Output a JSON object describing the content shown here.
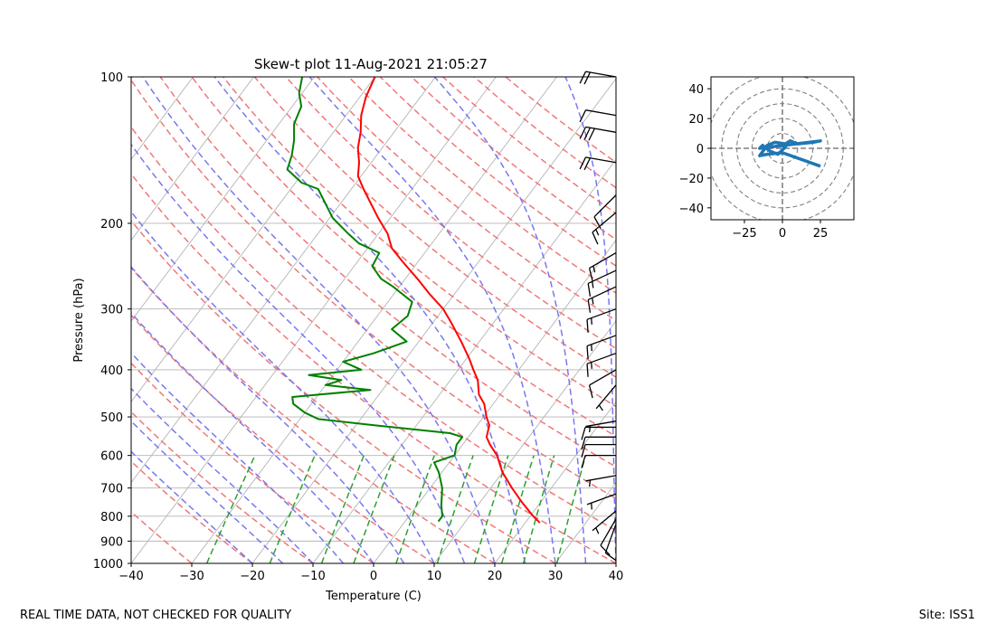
{
  "chart_data": [
    {
      "type": "skew-t",
      "title": "Skew-t plot 11-Aug-2021 21:05:27",
      "xlabel": "Temperature (C)",
      "ylabel": "Pressure (hPa)",
      "xlim": [
        -40,
        40
      ],
      "ylim": [
        1000,
        100
      ],
      "x_ticks": [
        -40,
        -30,
        -20,
        -10,
        0,
        10,
        20,
        30,
        40
      ],
      "x_tick_labels": [
        "−40",
        "−30",
        "−20",
        "−10",
        "0",
        "10",
        "20",
        "30",
        "40"
      ],
      "y_ticks": [
        1000,
        900,
        800,
        700,
        600,
        500,
        400,
        300,
        200,
        100
      ],
      "y_tick_labels": [
        "1000",
        "900",
        "800",
        "700",
        "600",
        "500",
        "400",
        "300",
        "200",
        "100"
      ],
      "grid": true,
      "colors": {
        "temperature": "#ff0000",
        "dewpoint": "#008000",
        "dry_adiabats": "#f07878",
        "moist_adiabats": "#7878f0",
        "mixing_ratio": "#2ca02c",
        "isotherms": "#b4b4b4",
        "barbs": "#000000"
      },
      "temperature": [
        {
          "p": 825,
          "t": 22.4
        },
        {
          "p": 800,
          "t": 20.5
        },
        {
          "p": 750,
          "t": 17.0
        },
        {
          "p": 700,
          "t": 13.5
        },
        {
          "p": 650,
          "t": 10.0
        },
        {
          "p": 600,
          "t": 7.0
        },
        {
          "p": 570,
          "t": 4.5
        },
        {
          "p": 550,
          "t": 3.0
        },
        {
          "p": 520,
          "t": 2.0
        },
        {
          "p": 500,
          "t": 0.5
        },
        {
          "p": 470,
          "t": -1.5
        },
        {
          "p": 450,
          "t": -3.5
        },
        {
          "p": 420,
          "t": -5.5
        },
        {
          "p": 400,
          "t": -7.5
        },
        {
          "p": 380,
          "t": -9.5
        },
        {
          "p": 350,
          "t": -13.0
        },
        {
          "p": 320,
          "t": -17.0
        },
        {
          "p": 300,
          "t": -20.0
        },
        {
          "p": 280,
          "t": -24.0
        },
        {
          "p": 260,
          "t": -28.0
        },
        {
          "p": 240,
          "t": -32.5
        },
        {
          "p": 225,
          "t": -36.0
        },
        {
          "p": 210,
          "t": -38.5
        },
        {
          "p": 195,
          "t": -42.0
        },
        {
          "p": 180,
          "t": -45.5
        },
        {
          "p": 170,
          "t": -48.0
        },
        {
          "p": 160,
          "t": -50.5
        },
        {
          "p": 150,
          "t": -52.0
        },
        {
          "p": 140,
          "t": -54.0
        },
        {
          "p": 130,
          "t": -55.5
        },
        {
          "p": 120,
          "t": -57.5
        },
        {
          "p": 110,
          "t": -59.0
        },
        {
          "p": 100,
          "t": -60.0
        }
      ],
      "dewpoint": [
        {
          "p": 820,
          "t": 5.5
        },
        {
          "p": 800,
          "t": 5.5
        },
        {
          "p": 760,
          "t": 4.0
        },
        {
          "p": 700,
          "t": 2.0
        },
        {
          "p": 650,
          "t": -0.5
        },
        {
          "p": 620,
          "t": -2.5
        },
        {
          "p": 600,
          "t": 0.0
        },
        {
          "p": 570,
          "t": -1.0
        },
        {
          "p": 550,
          "t": -1.0
        },
        {
          "p": 540,
          "t": -3.5
        },
        {
          "p": 520,
          "t": -17.0
        },
        {
          "p": 505,
          "t": -27.0
        },
        {
          "p": 490,
          "t": -30.0
        },
        {
          "p": 470,
          "t": -33.0
        },
        {
          "p": 455,
          "t": -34.0
        },
        {
          "p": 440,
          "t": -22.0
        },
        {
          "p": 430,
          "t": -30.0
        },
        {
          "p": 420,
          "t": -28.0
        },
        {
          "p": 410,
          "t": -34.0
        },
        {
          "p": 400,
          "t": -26.0
        },
        {
          "p": 385,
          "t": -30.0
        },
        {
          "p": 370,
          "t": -26.0
        },
        {
          "p": 350,
          "t": -22.0
        },
        {
          "p": 330,
          "t": -26.0
        },
        {
          "p": 310,
          "t": -25.0
        },
        {
          "p": 290,
          "t": -26.0
        },
        {
          "p": 270,
          "t": -31.0
        },
        {
          "p": 260,
          "t": -34.0
        },
        {
          "p": 245,
          "t": -37.0
        },
        {
          "p": 230,
          "t": -37.5
        },
        {
          "p": 220,
          "t": -42.0
        },
        {
          "p": 210,
          "t": -45.0
        },
        {
          "p": 195,
          "t": -49.5
        },
        {
          "p": 180,
          "t": -53.0
        },
        {
          "p": 170,
          "t": -55.5
        },
        {
          "p": 165,
          "t": -59.0
        },
        {
          "p": 155,
          "t": -63.0
        },
        {
          "p": 145,
          "t": -64.0
        },
        {
          "p": 135,
          "t": -65.5
        },
        {
          "p": 125,
          "t": -67.5
        },
        {
          "p": 115,
          "t": -68.5
        },
        {
          "p": 108,
          "t": -70.5
        },
        {
          "p": 100,
          "t": -72.0
        }
      ],
      "wind_barbs": [
        {
          "p": 830,
          "speed_kt": 10,
          "dir": 200
        },
        {
          "p": 810,
          "speed_kt": 10,
          "dir": 210
        },
        {
          "p": 780,
          "speed_kt": 5,
          "dir": 230
        },
        {
          "p": 720,
          "speed_kt": 5,
          "dir": 250
        },
        {
          "p": 660,
          "speed_kt": 5,
          "dir": 260
        },
        {
          "p": 600,
          "speed_kt": 10,
          "dir": 270
        },
        {
          "p": 570,
          "speed_kt": 10,
          "dir": 270
        },
        {
          "p": 550,
          "speed_kt": 10,
          "dir": 270
        },
        {
          "p": 525,
          "speed_kt": 10,
          "dir": 270
        },
        {
          "p": 510,
          "speed_kt": 5,
          "dir": 260
        },
        {
          "p": 430,
          "speed_kt": 5,
          "dir": 220
        },
        {
          "p": 400,
          "speed_kt": 10,
          "dir": 240
        },
        {
          "p": 370,
          "speed_kt": 15,
          "dir": 250
        },
        {
          "p": 340,
          "speed_kt": 15,
          "dir": 250
        },
        {
          "p": 300,
          "speed_kt": 15,
          "dir": 250
        },
        {
          "p": 270,
          "speed_kt": 15,
          "dir": 245
        },
        {
          "p": 250,
          "speed_kt": 15,
          "dir": 245
        },
        {
          "p": 230,
          "speed_kt": 15,
          "dir": 240
        },
        {
          "p": 190,
          "speed_kt": 15,
          "dir": 230
        },
        {
          "p": 175,
          "speed_kt": 10,
          "dir": 225
        },
        {
          "p": 150,
          "speed_kt": 20,
          "dir": 280
        },
        {
          "p": 130,
          "speed_kt": 30,
          "dir": 280
        },
        {
          "p": 120,
          "speed_kt": 10,
          "dir": 280
        },
        {
          "p": 100,
          "speed_kt": 20,
          "dir": 280
        }
      ]
    },
    {
      "type": "hodograph",
      "xlim": [
        -47,
        47
      ],
      "ylim": [
        -48,
        48
      ],
      "x_ticks": [
        -25,
        0,
        25
      ],
      "x_tick_labels": [
        "−25",
        "0",
        "25"
      ],
      "y_ticks": [
        -40,
        -20,
        0,
        20,
        40
      ],
      "y_tick_labels": [
        "−40",
        "−20",
        "0",
        "20",
        "40"
      ],
      "rings": [
        10,
        20,
        30,
        40,
        50
      ],
      "color": "#1f77b4",
      "u": [
        25,
        0,
        -10,
        -15,
        -10,
        -5,
        2,
        5,
        10,
        20,
        25,
        -15,
        -13,
        -8,
        -3,
        2,
        0
      ],
      "v": [
        -12,
        -3,
        -4,
        -5,
        2,
        4,
        3,
        5,
        3,
        4,
        5,
        0,
        2,
        -2,
        -4,
        1,
        3
      ]
    }
  ],
  "footer": {
    "disclaimer": "REAL TIME DATA, NOT CHECKED FOR QUALITY",
    "site": "Site: ISS1"
  }
}
